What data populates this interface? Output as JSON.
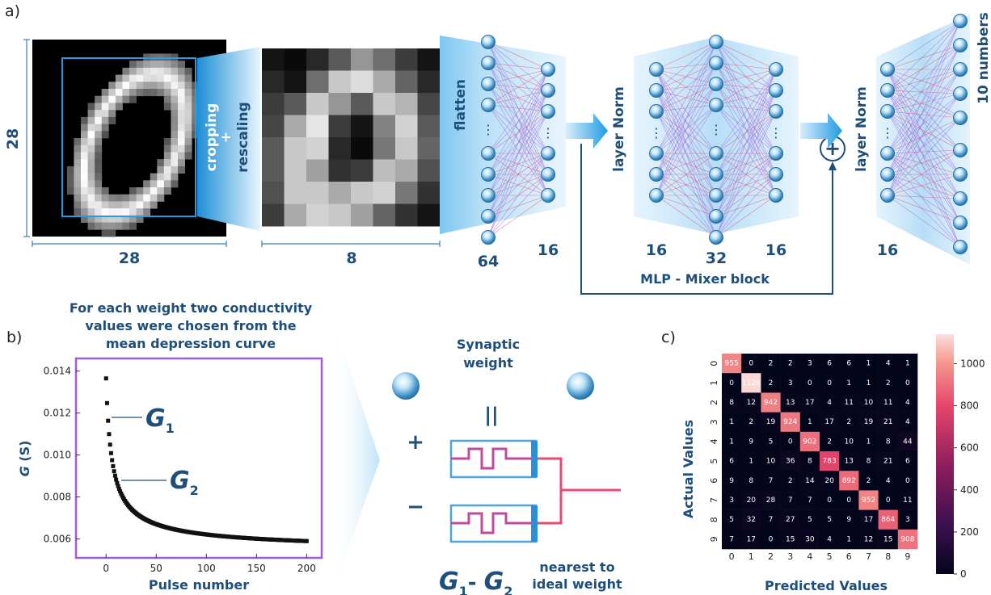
{
  "panel_a": {
    "label": "a)",
    "dim_28_left": "28",
    "dim_28_bottom": "28",
    "dim_8": "8",
    "cropping": "cropping",
    "plus": "+",
    "rescaling": "rescaling",
    "flatten": "flatten",
    "layer_norm_1": "layer Norm",
    "layer_norm_2": "layer Norm",
    "ten_numbers": "10 numbers",
    "n64": "64",
    "n16a": "16",
    "n16b": "16",
    "n32": "32",
    "n16c": "16",
    "n16d": "16",
    "mixer_block": "MLP - Mixer block",
    "add_symbol": "+",
    "dots": "⋮"
  },
  "panel_b": {
    "label": "b)",
    "caption_line1": "For each weight two conductivity",
    "caption_line2": "values were chosen from the",
    "caption_line3": "mean depression curve",
    "g1_main": "G",
    "g1_sub": "1",
    "g2_main": "G",
    "g2_sub": "2",
    "synaptic_line1": "Synaptic",
    "synaptic_line2": "weight",
    "equals": "||",
    "plus_sign": "+",
    "minus_sign": "−",
    "diff_g1": "G",
    "diff_sub1": "1",
    "diff_dash": "- ",
    "diff_g2": "G",
    "diff_sub2": "2",
    "nearest_line1": "nearest to",
    "nearest_line2": "ideal weight"
  },
  "panel_c": {
    "label": "c)"
  },
  "chart_data": [
    {
      "type": "scatter",
      "title": "",
      "xlabel": "Pulse number",
      "ylabel_italic": "G",
      "ylabel_rest": " (S)",
      "xlim": [
        -30,
        215
      ],
      "ylim": [
        0.0051,
        0.0146
      ],
      "xticks": [
        0,
        50,
        100,
        150,
        200
      ],
      "yticks": [
        0.006,
        0.008,
        0.01,
        0.012,
        0.014
      ],
      "ytick_labels": [
        "0.006",
        "0.008",
        "0.010",
        "0.012",
        "0.014"
      ],
      "curve": {
        "start": 0.01365,
        "end": 0.0059,
        "n_points": 201
      }
    },
    {
      "type": "heatmap",
      "xlabel": "Predicted Values",
      "ylabel": "Actual Values",
      "labels": [
        "0",
        "1",
        "2",
        "3",
        "4",
        "5",
        "6",
        "7",
        "8",
        "9"
      ],
      "matrix": [
        [
          955,
          0,
          2,
          2,
          3,
          6,
          6,
          1,
          4,
          1
        ],
        [
          0,
          1126,
          2,
          3,
          0,
          0,
          1,
          1,
          2,
          0
        ],
        [
          8,
          12,
          942,
          13,
          17,
          4,
          11,
          10,
          11,
          4
        ],
        [
          1,
          2,
          19,
          924,
          1,
          17,
          2,
          19,
          21,
          4
        ],
        [
          1,
          9,
          5,
          0,
          902,
          2,
          10,
          1,
          8,
          44
        ],
        [
          6,
          1,
          10,
          36,
          8,
          783,
          13,
          8,
          21,
          6
        ],
        [
          9,
          8,
          7,
          2,
          14,
          20,
          892,
          2,
          4,
          0
        ],
        [
          3,
          20,
          28,
          7,
          7,
          0,
          0,
          952,
          0,
          11
        ],
        [
          5,
          32,
          7,
          27,
          5,
          5,
          9,
          17,
          864,
          3
        ],
        [
          7,
          17,
          0,
          15,
          30,
          4,
          1,
          12,
          15,
          908
        ]
      ],
      "vmin": 0,
      "vmax": 1140,
      "colorbar_ticks": [
        0,
        200,
        400,
        600,
        800,
        1000
      ],
      "colorbar_tick_labels": [
        "0",
        "200",
        "400",
        "600",
        "800",
        "1000"
      ]
    }
  ],
  "colors": {
    "accent_blue": "#1e4f7a",
    "light_blue": "#cbe6f8",
    "arrow_blue": "#2ea3e6",
    "purple": "#9a4fd6",
    "pink": "#e84a72",
    "scatter": "#111111"
  }
}
